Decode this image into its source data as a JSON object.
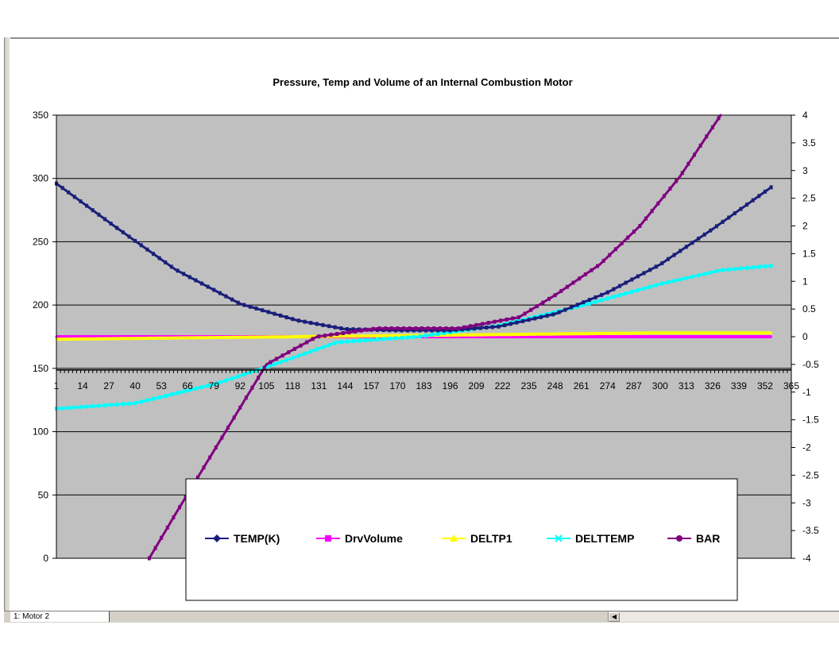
{
  "sheet": {
    "tab_label": "1: Motor 2",
    "scroll_icon": "scroll-left-icon"
  },
  "chart_data": {
    "type": "line",
    "title": "Pressure, Temp and Volume of an Internal Combustion Motor",
    "x": {
      "range": [
        1,
        365
      ],
      "tick_labels": [
        "1",
        "14",
        "27",
        "40",
        "53",
        "66",
        "79",
        "92",
        "105",
        "118",
        "131",
        "144",
        "157",
        "170",
        "183",
        "196",
        "209",
        "222",
        "235",
        "248",
        "261",
        "274",
        "287",
        "300",
        "313",
        "326",
        "339",
        "352",
        "365"
      ],
      "crosses_at_secondary": -0.6
    },
    "y_left": {
      "range": [
        0,
        350
      ],
      "tick_labels": [
        "0",
        "50",
        "100",
        "150",
        "200",
        "250",
        "300",
        "350"
      ]
    },
    "y_right": {
      "range": [
        -4,
        4
      ],
      "tick_labels": [
        "-4",
        "-3.5",
        "-3",
        "-2.5",
        "-2",
        "-1.5",
        "-1",
        "-0.5",
        "0",
        "0.5",
        "1",
        "1.5",
        "2",
        "2.5",
        "3",
        "3.5",
        "4"
      ]
    },
    "grid": "horizontal",
    "plot_background": "#c0c0c0",
    "legend": {
      "placement": "bottom-center"
    },
    "series": [
      {
        "name": "TEMP(K)",
        "axis": "left",
        "color": "#1a1f7a",
        "marker": "diamond",
        "x": [
          1,
          30,
          60,
          92,
          120,
          144,
          170,
          196,
          220,
          248,
          274,
          300,
          326,
          355
        ],
        "values": [
          296,
          262,
          228,
          201,
          188,
          181,
          180,
          180,
          183,
          193,
          210,
          232,
          260,
          293
        ]
      },
      {
        "name": "DrvVolume",
        "axis": "left",
        "color": "#ff00ff",
        "marker": "square",
        "x": [
          1,
          60,
          120,
          180,
          240,
          300,
          355
        ],
        "values": [
          175,
          175,
          175,
          175,
          175,
          175,
          175
        ]
      },
      {
        "name": "DELTP1",
        "axis": "left",
        "color": "#ffff00",
        "marker": "triangle",
        "x": [
          1,
          60,
          120,
          180,
          240,
          300,
          355
        ],
        "values": [
          173,
          174,
          175,
          176,
          177,
          178,
          178
        ]
      },
      {
        "name": "DELTTEMP",
        "axis": "right",
        "color": "#00ffff",
        "marker": "x",
        "x": [
          1,
          40,
          80,
          105,
          140,
          180,
          220,
          260,
          300,
          330,
          355
        ],
        "values": [
          -1.3,
          -1.2,
          -0.85,
          -0.55,
          -0.1,
          0.0,
          0.2,
          0.55,
          0.95,
          1.2,
          1.28
        ]
      },
      {
        "name": "BAR",
        "axis": "right",
        "color": "#800080",
        "marker": "star",
        "x": [
          47,
          60,
          80,
          105,
          130,
          160,
          200,
          230,
          248,
          270,
          290,
          310,
          330
        ],
        "values": [
          -4,
          -3.2,
          -2.0,
          -0.5,
          0.0,
          0.15,
          0.15,
          0.35,
          0.75,
          1.3,
          2.0,
          2.9,
          4.0
        ]
      }
    ]
  }
}
